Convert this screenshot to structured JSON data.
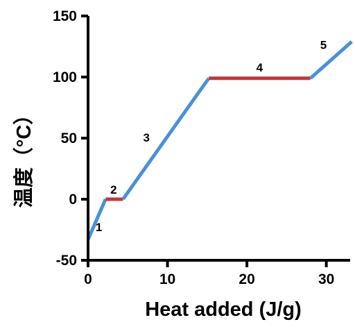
{
  "chart_data": {
    "type": "line",
    "title": "",
    "xlabel": "Heat added (J/g)",
    "ylabel": "温度（°C）",
    "xlim": [
      0,
      33
    ],
    "ylim": [
      -50,
      150
    ],
    "xticks": [
      0,
      10,
      20,
      30
    ],
    "yticks": [
      -50,
      0,
      50,
      100,
      150
    ],
    "grid": false,
    "legend": "none",
    "series": [
      {
        "label": "1",
        "color": "#4a90d9",
        "x": [
          0,
          2.2
        ],
        "y": [
          -33,
          0
        ]
      },
      {
        "label": "2",
        "color": "#c0393b",
        "x": [
          2.2,
          4.4
        ],
        "y": [
          0,
          0
        ]
      },
      {
        "label": "3",
        "color": "#4a90d9",
        "x": [
          4.4,
          15.2
        ],
        "y": [
          0,
          99
        ]
      },
      {
        "label": "4",
        "color": "#c0393b",
        "x": [
          15.2,
          28.0
        ],
        "y": [
          99,
          99
        ]
      },
      {
        "label": "5",
        "color": "#4a90d9",
        "x": [
          28.0,
          33.2
        ],
        "y": [
          99,
          129
        ]
      }
    ]
  }
}
